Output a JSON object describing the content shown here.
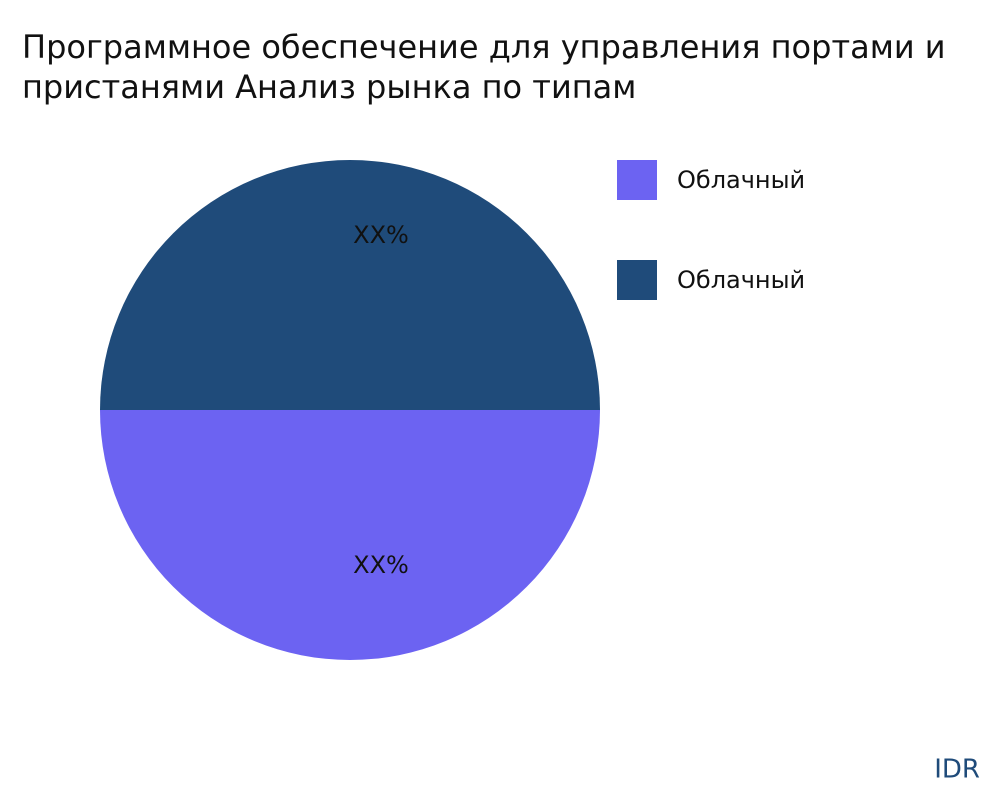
{
  "chart_data": {
    "type": "pie",
    "title": [
      "Программное обеспечение для управления портами и",
      "пристанями Анализ рынка по типам"
    ],
    "categories": [
      "Облачный",
      "Облачный"
    ],
    "values": [
      50,
      50
    ],
    "value_labels": [
      "XX%",
      "XX%"
    ],
    "colors": [
      "#6c63f2",
      "#1f4b7a"
    ],
    "legend": "right",
    "watermark": "IDR"
  }
}
